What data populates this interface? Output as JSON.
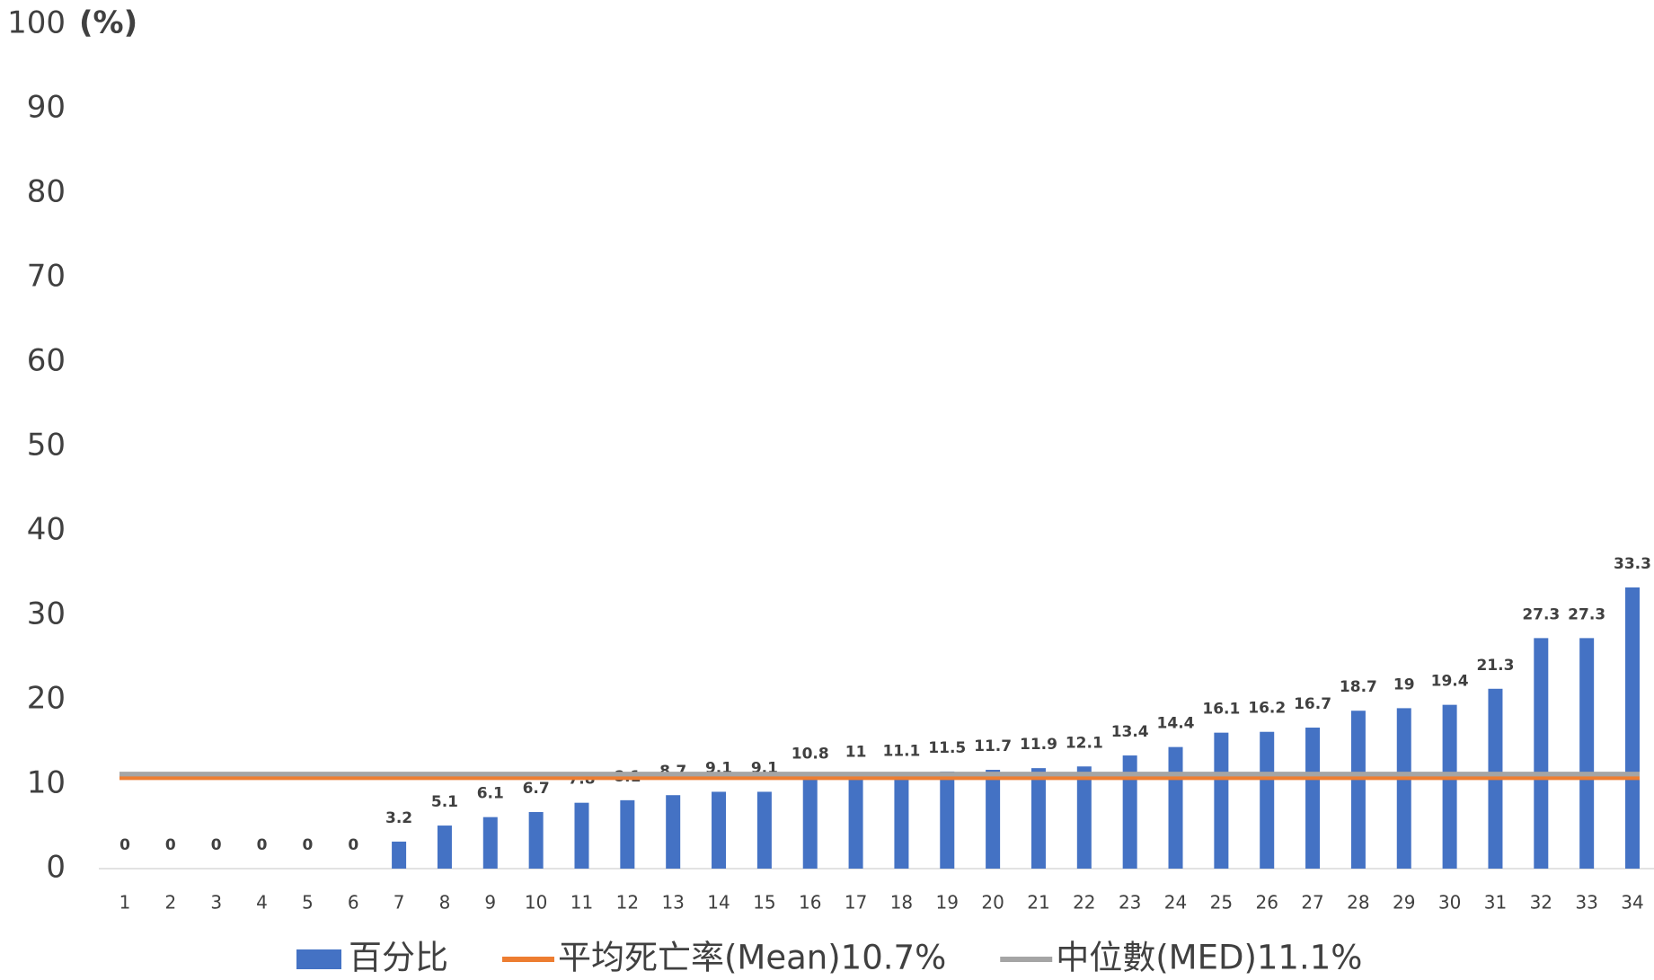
{
  "chart_data": {
    "type": "bar",
    "y_unit": "(%)",
    "categories": [
      "1",
      "2",
      "3",
      "4",
      "5",
      "6",
      "7",
      "8",
      "9",
      "10",
      "11",
      "12",
      "13",
      "14",
      "15",
      "16",
      "17",
      "18",
      "19",
      "20",
      "21",
      "22",
      "23",
      "24",
      "25",
      "26",
      "27",
      "28",
      "29",
      "30",
      "31",
      "32",
      "33",
      "34"
    ],
    "series": [
      {
        "name": "百分比",
        "color": "#4472c4",
        "values": [
          0,
          0,
          0,
          0,
          0,
          0,
          3.2,
          5.1,
          6.1,
          6.7,
          7.8,
          8.1,
          8.7,
          9.1,
          9.1,
          10.8,
          11,
          11.1,
          11.5,
          11.7,
          11.9,
          12.1,
          13.4,
          14.4,
          16.1,
          16.2,
          16.7,
          18.7,
          19,
          19.4,
          21.3,
          27.3,
          27.3,
          33.3
        ]
      }
    ],
    "reference_lines": [
      {
        "name": "平均死亡率(Mean)10.7%",
        "value": 10.7,
        "color": "#ed7d31"
      },
      {
        "name": "中位數(MED)11.1%",
        "value": 11.1,
        "color": "#a5a5a5"
      }
    ],
    "ylim": [
      0,
      100
    ],
    "yticks": [
      0,
      10,
      20,
      30,
      40,
      50,
      60,
      70,
      80,
      90,
      100
    ],
    "legend": "bottom"
  }
}
